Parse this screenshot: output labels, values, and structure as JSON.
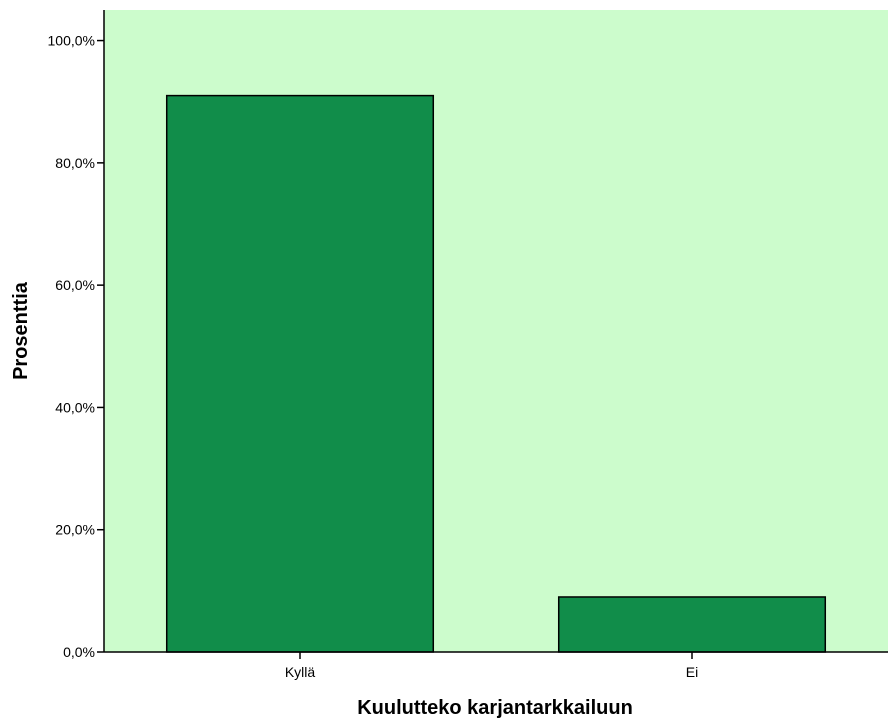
{
  "chart_data": {
    "type": "bar",
    "categories": [
      "Kyllä",
      "Ei"
    ],
    "values": [
      91.0,
      9.0
    ],
    "xlabel": "Kuulutteko karjantarkkailuun",
    "ylabel": "Prosenttia",
    "ylim": [
      0,
      105
    ],
    "yticks": [
      0,
      20,
      40,
      60,
      80,
      100
    ],
    "ytick_labels": [
      "0,0%",
      "20,0%",
      "40,0%",
      "60,0%",
      "80,0%",
      "100,0%"
    ],
    "grid": false,
    "colors": {
      "plot_background": "#ccfccc",
      "bar_fill": "#118d4a",
      "bar_stroke": "#000000"
    }
  }
}
